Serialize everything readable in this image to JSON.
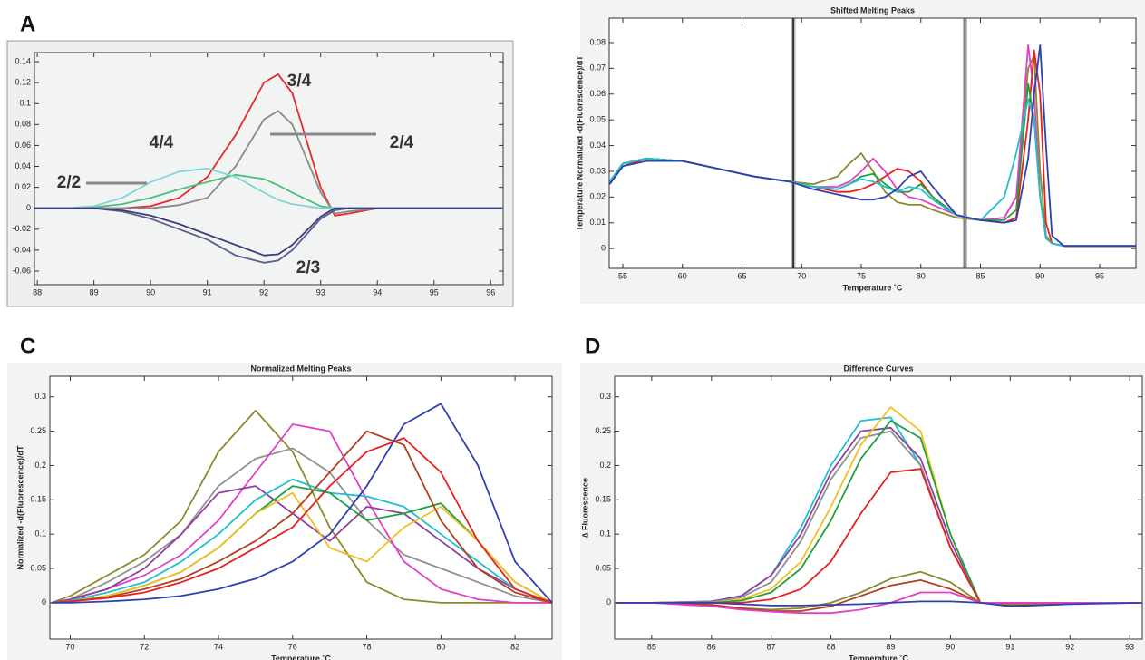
{
  "chart_data": [
    {
      "type": "line",
      "panel": "A",
      "x": [
        87.95,
        88.5,
        89,
        89.5,
        90,
        90.5,
        91,
        91.5,
        92,
        92.25,
        92.5,
        93,
        93.25,
        93.5,
        94,
        95,
        96.2
      ],
      "xlim": [
        87.95,
        96.22
      ],
      "xticks": [
        88,
        89,
        90,
        91,
        92,
        93,
        94,
        95,
        96
      ],
      "ylim": [
        -0.073,
        0.1487
      ],
      "yticks": [
        -0.06,
        -0.04,
        -0.02,
        0,
        0.02,
        0.04,
        0.06,
        0.08,
        0.1,
        0.12,
        0.14
      ],
      "annotations": [
        "3/4",
        "2/4",
        "4/4",
        "2/2",
        "2/3"
      ],
      "series": [
        {
          "color": "#e8282b",
          "values": [
            0,
            0,
            0,
            0,
            0.002,
            0.01,
            0.03,
            0.07,
            0.12,
            0.128,
            0.11,
            0.02,
            -0.007,
            -0.005,
            0,
            0,
            0
          ]
        },
        {
          "color": "#8a8a8a",
          "values": [
            0,
            0,
            0,
            0,
            0,
            0.003,
            0.01,
            0.04,
            0.085,
            0.093,
            0.08,
            0.015,
            -0.005,
            -0.003,
            0,
            0,
            0
          ]
        },
        {
          "color": "#4bbf7a",
          "values": [
            0,
            0,
            0.001,
            0.004,
            0.01,
            0.018,
            0.025,
            0.032,
            0.028,
            0.022,
            0.015,
            0.002,
            0,
            0,
            0,
            0,
            0
          ]
        },
        {
          "color": "#7fd6d6",
          "values": [
            0,
            0,
            0.002,
            0.01,
            0.025,
            0.035,
            0.038,
            0.03,
            0.015,
            0.008,
            0.004,
            0,
            0,
            0,
            0,
            0,
            0
          ]
        },
        {
          "color": "#5a5f8f",
          "values": [
            0,
            0,
            0,
            -0.003,
            -0.01,
            -0.02,
            -0.03,
            -0.045,
            -0.052,
            -0.05,
            -0.04,
            -0.01,
            -0.002,
            0,
            0,
            0,
            0
          ]
        },
        {
          "color": "#3a3f7a",
          "values": [
            0,
            0,
            0,
            -0.002,
            -0.007,
            -0.015,
            -0.025,
            -0.035,
            -0.045,
            -0.044,
            -0.035,
            -0.008,
            0,
            0,
            0,
            0,
            0
          ]
        }
      ]
    },
    {
      "type": "line",
      "title": "Shifted Melting Peaks",
      "xlabel": "Temperature ˚C",
      "ylabel": "Temperature Normalized -d(Fluorescence)/dT",
      "x": [
        53.9,
        55,
        57,
        60,
        63,
        66,
        69,
        71,
        73,
        74,
        75,
        76,
        77,
        78,
        79,
        80,
        81,
        83,
        85,
        87,
        88,
        89,
        89.5,
        90,
        90.5,
        91,
        92,
        95,
        98
      ],
      "xlim": [
        53.86,
        98.04
      ],
      "xticks": [
        55,
        60,
        65,
        70,
        75,
        80,
        85,
        90,
        95
      ],
      "ylim": [
        -0.0077,
        0.0895
      ],
      "yticks": [
        0,
        0.01,
        0.02,
        0.03,
        0.04,
        0.05,
        0.06,
        0.07,
        0.08
      ],
      "vlines": [
        69.3,
        83.7
      ],
      "series": [
        {
          "color": "#8c8a2a",
          "values": [
            0.026,
            0.033,
            0.035,
            0.034,
            0.031,
            0.028,
            0.026,
            0.025,
            0.028,
            0.033,
            0.037,
            0.03,
            0.022,
            0.018,
            0.017,
            0.017,
            0.015,
            0.012,
            0.011,
            0.012,
            0.02,
            0.07,
            0.075,
            0.03,
            0.005,
            0.002,
            0.001,
            0.001,
            0.001
          ]
        },
        {
          "color": "#e040c8",
          "values": [
            0.026,
            0.033,
            0.035,
            0.034,
            0.031,
            0.028,
            0.026,
            0.024,
            0.024,
            0.026,
            0.03,
            0.035,
            0.03,
            0.023,
            0.02,
            0.019,
            0.017,
            0.013,
            0.011,
            0.012,
            0.02,
            0.079,
            0.06,
            0.02,
            0.004,
            0.002,
            0.001,
            0.001,
            0.001
          ]
        },
        {
          "color": "#e82020",
          "values": [
            0.025,
            0.032,
            0.035,
            0.034,
            0.031,
            0.028,
            0.026,
            0.024,
            0.022,
            0.022,
            0.023,
            0.025,
            0.028,
            0.031,
            0.03,
            0.026,
            0.02,
            0.013,
            0.011,
            0.01,
            0.012,
            0.05,
            0.077,
            0.06,
            0.01,
            0.002,
            0.001,
            0.001,
            0.001
          ]
        },
        {
          "color": "#20a040",
          "values": [
            0.026,
            0.033,
            0.035,
            0.034,
            0.031,
            0.028,
            0.026,
            0.024,
            0.023,
            0.025,
            0.028,
            0.029,
            0.025,
            0.022,
            0.022,
            0.025,
            0.02,
            0.013,
            0.011,
            0.011,
            0.015,
            0.064,
            0.05,
            0.02,
            0.004,
            0.002,
            0.001,
            0.001,
            0.001
          ]
        },
        {
          "color": "#20c0d0",
          "values": [
            0.026,
            0.033,
            0.035,
            0.034,
            0.031,
            0.028,
            0.026,
            0.024,
            0.023,
            0.025,
            0.027,
            0.026,
            0.024,
            0.022,
            0.024,
            0.023,
            0.019,
            0.013,
            0.011,
            0.02,
            0.037,
            0.058,
            0.05,
            0.02,
            0.004,
            0.002,
            0.001,
            0.001,
            0.001
          ]
        },
        {
          "color": "#3040b0",
          "values": [
            0.025,
            0.032,
            0.034,
            0.034,
            0.031,
            0.028,
            0.026,
            0.023,
            0.021,
            0.02,
            0.019,
            0.019,
            0.02,
            0.023,
            0.028,
            0.03,
            0.024,
            0.013,
            0.011,
            0.01,
            0.011,
            0.035,
            0.06,
            0.079,
            0.04,
            0.005,
            0.001,
            0.001,
            0.001
          ]
        }
      ]
    },
    {
      "type": "line",
      "panel": "C",
      "title": "Normalized Melting Peaks",
      "xlabel": "Temperature ˚C",
      "ylabel": "Normalized -d(Fluorescence)/dT",
      "x": [
        69.5,
        70,
        71,
        72,
        73,
        74,
        75,
        76,
        77,
        78,
        79,
        80,
        81,
        82,
        83
      ],
      "xlim": [
        69.45,
        83.0
      ],
      "xticks": [
        70,
        72,
        74,
        76,
        78,
        80,
        82
      ],
      "ylim": [
        -0.053,
        0.33
      ],
      "yticks": [
        0,
        0.05,
        0.1,
        0.15,
        0.2,
        0.25,
        0.3
      ],
      "series": [
        {
          "color": "#8c8a2a",
          "values": [
            0,
            0.01,
            0.04,
            0.07,
            0.12,
            0.22,
            0.28,
            0.22,
            0.11,
            0.03,
            0.005,
            0,
            0,
            0,
            0
          ]
        },
        {
          "color": "#909090",
          "values": [
            0,
            0.005,
            0.03,
            0.06,
            0.1,
            0.17,
            0.21,
            0.225,
            0.19,
            0.12,
            0.07,
            0.05,
            0.03,
            0.01,
            0
          ]
        },
        {
          "color": "#e040c8",
          "values": [
            0,
            0.005,
            0.02,
            0.04,
            0.07,
            0.12,
            0.19,
            0.26,
            0.25,
            0.15,
            0.06,
            0.02,
            0.005,
            0,
            0
          ]
        },
        {
          "color": "#9040a0",
          "values": [
            0,
            0.005,
            0.02,
            0.05,
            0.1,
            0.16,
            0.17,
            0.13,
            0.09,
            0.14,
            0.13,
            0.09,
            0.05,
            0.02,
            0
          ]
        },
        {
          "color": "#20c0d0",
          "values": [
            0,
            0.003,
            0.015,
            0.03,
            0.06,
            0.1,
            0.15,
            0.18,
            0.16,
            0.155,
            0.14,
            0.1,
            0.06,
            0.02,
            0
          ]
        },
        {
          "color": "#20a040",
          "values": [
            0,
            0.002,
            0.01,
            0.025,
            0.045,
            0.08,
            0.13,
            0.17,
            0.16,
            0.12,
            0.13,
            0.145,
            0.09,
            0.03,
            0
          ]
        },
        {
          "color": "#f0c020",
          "values": [
            0,
            0.002,
            0.01,
            0.025,
            0.045,
            0.08,
            0.13,
            0.16,
            0.08,
            0.06,
            0.11,
            0.14,
            0.09,
            0.03,
            0
          ]
        },
        {
          "color": "#b04020",
          "values": [
            0,
            0.002,
            0.008,
            0.02,
            0.035,
            0.06,
            0.09,
            0.13,
            0.19,
            0.25,
            0.23,
            0.12,
            0.05,
            0.015,
            0
          ]
        },
        {
          "color": "#e82020",
          "values": [
            0,
            0.002,
            0.007,
            0.015,
            0.03,
            0.05,
            0.08,
            0.11,
            0.17,
            0.22,
            0.24,
            0.19,
            0.09,
            0.02,
            0
          ]
        },
        {
          "color": "#3040b0",
          "values": [
            0,
            0,
            0.002,
            0.005,
            0.01,
            0.02,
            0.035,
            0.06,
            0.1,
            0.17,
            0.26,
            0.29,
            0.2,
            0.06,
            0
          ]
        }
      ]
    },
    {
      "type": "line",
      "panel": "D",
      "title": "Difference Curves",
      "xlabel": "Temperature ˚C",
      "ylabel": "∆ Fluorescence",
      "x": [
        84.4,
        85,
        86,
        86.5,
        87,
        87.5,
        88,
        88.5,
        89,
        89.5,
        90,
        90.5,
        91,
        92,
        93.2
      ],
      "xlim": [
        84.38,
        93.21
      ],
      "xticks": [
        85,
        86,
        87,
        88,
        89,
        90,
        91,
        92,
        93
      ],
      "ylim": [
        -0.053,
        0.33
      ],
      "yticks": [
        0,
        0.05,
        0.1,
        0.15,
        0.2,
        0.25,
        0.3
      ],
      "series": [
        {
          "color": "#20c0d0",
          "values": [
            0,
            0,
            0.002,
            0.01,
            0.04,
            0.11,
            0.2,
            0.265,
            0.27,
            0.2,
            0.08,
            0,
            -0.002,
            0,
            0
          ]
        },
        {
          "color": "#9040a0",
          "values": [
            0,
            0,
            0.002,
            0.01,
            0.04,
            0.1,
            0.19,
            0.25,
            0.255,
            0.21,
            0.09,
            0,
            -0.003,
            0,
            0
          ]
        },
        {
          "color": "#909090",
          "values": [
            0,
            0,
            0.001,
            0.008,
            0.03,
            0.09,
            0.18,
            0.24,
            0.25,
            0.2,
            0.08,
            0,
            -0.003,
            0,
            0
          ]
        },
        {
          "color": "#f0c020",
          "values": [
            0,
            0,
            0,
            0.005,
            0.02,
            0.06,
            0.14,
            0.23,
            0.285,
            0.25,
            0.1,
            0,
            -0.003,
            0,
            0
          ]
        },
        {
          "color": "#20a040",
          "values": [
            0,
            0,
            0,
            0.003,
            0.015,
            0.05,
            0.12,
            0.21,
            0.265,
            0.24,
            0.1,
            0,
            -0.003,
            0,
            0
          ]
        },
        {
          "color": "#e82020",
          "values": [
            0,
            0,
            0,
            0,
            0.005,
            0.02,
            0.06,
            0.13,
            0.19,
            0.195,
            0.08,
            0,
            -0.003,
            0,
            0
          ]
        },
        {
          "color": "#8c8a2a",
          "values": [
            0,
            0,
            -0.003,
            -0.008,
            -0.01,
            -0.008,
            0,
            0.015,
            0.035,
            0.045,
            0.03,
            0,
            -0.002,
            0,
            0
          ]
        },
        {
          "color": "#b04020",
          "values": [
            0,
            0,
            -0.003,
            -0.008,
            -0.012,
            -0.012,
            -0.005,
            0.01,
            0.025,
            0.033,
            0.02,
            0,
            0,
            0,
            0
          ]
        },
        {
          "color": "#e040c8",
          "values": [
            0,
            0,
            -0.005,
            -0.01,
            -0.013,
            -0.015,
            -0.015,
            -0.01,
            0,
            0.015,
            0.015,
            0,
            0,
            0,
            0
          ]
        },
        {
          "color": "#3040b0",
          "values": [
            0,
            0,
            0,
            -0.002,
            -0.004,
            -0.004,
            -0.003,
            -0.002,
            0,
            0.002,
            0.002,
            0,
            -0.005,
            -0.002,
            0
          ]
        }
      ]
    }
  ]
}
